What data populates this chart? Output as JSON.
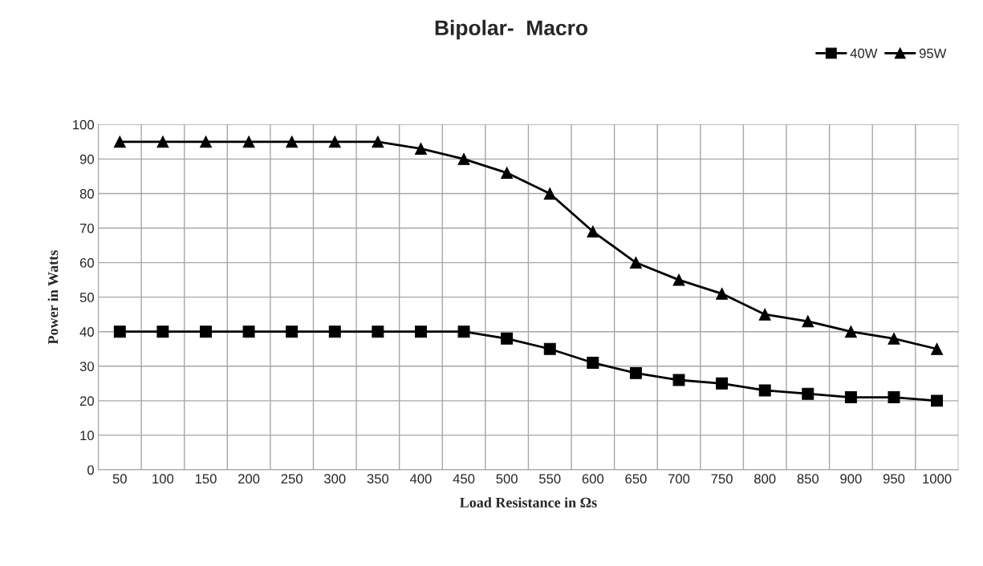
{
  "chart_data": {
    "type": "line",
    "title": "Bipolar-  Macro",
    "xlabel": "Load Resistance in Ωs",
    "ylabel": "Power in Watts",
    "categories": [
      "50",
      "100",
      "150",
      "200",
      "250",
      "300",
      "350",
      "400",
      "450",
      "500",
      "550",
      "600",
      "650",
      "700",
      "750",
      "800",
      "850",
      "900",
      "950",
      "1000"
    ],
    "series": [
      {
        "name": "40W",
        "color": "#000000",
        "marker": "square",
        "values": [
          40,
          40,
          40,
          40,
          40,
          40,
          40,
          40,
          40,
          38,
          35,
          31,
          28,
          26,
          25,
          23,
          22,
          21,
          21,
          20
        ]
      },
      {
        "name": "95W",
        "color": "#000000",
        "marker": "triangle",
        "values": [
          95,
          95,
          95,
          95,
          95,
          95,
          95,
          93,
          90,
          86,
          80,
          69,
          60,
          55,
          51,
          45,
          43,
          40,
          38,
          35
        ]
      }
    ],
    "ylim": [
      0,
      100
    ],
    "yticks": [
      0,
      10,
      20,
      30,
      40,
      50,
      60,
      70,
      80,
      90,
      100
    ],
    "grid": true,
    "legend": "top right",
    "line_style": "solid"
  }
}
